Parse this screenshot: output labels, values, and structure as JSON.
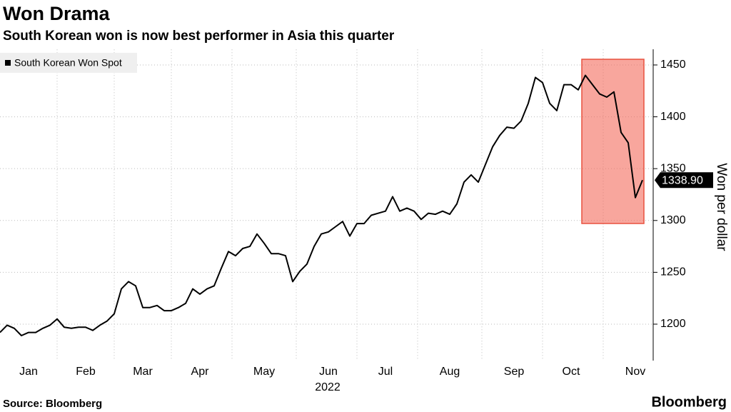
{
  "chart_data": {
    "type": "line",
    "title": "Won Drama",
    "subtitle": "South Korean won is now best performer in Asia this quarter",
    "year": "2022",
    "y_axis_label": "Won per dollar",
    "source": "Source: Bloomberg",
    "brand": "Bloomberg",
    "categories": [
      null,
      null,
      null,
      null,
      "Jan",
      null,
      null,
      null,
      null,
      null,
      null,
      null,
      "Feb",
      null,
      null,
      null,
      null,
      null,
      null,
      null,
      "Mar",
      null,
      null,
      null,
      null,
      null,
      null,
      null,
      "Apr",
      null,
      null,
      null,
      null,
      null,
      null,
      null,
      null,
      "May",
      null,
      null,
      null,
      null,
      null,
      null,
      null,
      null,
      "Jun",
      null,
      null,
      null,
      null,
      null,
      null,
      null,
      "Jul",
      null,
      null,
      null,
      null,
      null,
      null,
      null,
      null,
      "Aug",
      null,
      null,
      null,
      null,
      null,
      null,
      null,
      null,
      "Sep",
      null,
      null,
      null,
      null,
      null,
      null,
      null,
      "Oct",
      null,
      null,
      null,
      null,
      null,
      null,
      null,
      null,
      "Nov",
      null
    ],
    "series": [
      {
        "name": "South Korean Won Spot",
        "color": "#000000",
        "values": [
          1192,
          1199,
          1196,
          1189,
          1192,
          1192,
          1196,
          1199,
          1205,
          1197,
          1196,
          1197,
          1197,
          1194,
          1199,
          1203,
          1210,
          1234,
          1241,
          1237,
          1216,
          1216,
          1218,
          1213,
          1213,
          1216,
          1220,
          1234,
          1229,
          1234,
          1237,
          1254,
          1270,
          1266,
          1273,
          1275,
          1287,
          1278,
          1268,
          1268,
          1266,
          1241,
          1251,
          1258,
          1275,
          1287,
          1289,
          1294,
          1299,
          1285,
          1297,
          1297,
          1305,
          1307,
          1309,
          1323,
          1309,
          1312,
          1309,
          1301,
          1307,
          1306,
          1309,
          1306,
          1316,
          1337,
          1344,
          1337,
          1354,
          1371,
          1382,
          1390,
          1389,
          1396,
          1413,
          1438,
          1433,
          1413,
          1406,
          1431,
          1431,
          1426,
          1440,
          1431,
          1422,
          1419,
          1424,
          1385,
          1375,
          1322,
          1338.9
        ],
        "value_labels": [
          null,
          null,
          null,
          null,
          null,
          null,
          null,
          null,
          null,
          null,
          null,
          null,
          null,
          null,
          null,
          null,
          null,
          null,
          null,
          null,
          null,
          null,
          null,
          null,
          null,
          null,
          null,
          null,
          null,
          null,
          null,
          null,
          null,
          null,
          null,
          null,
          null,
          null,
          null,
          null,
          null,
          null,
          null,
          null,
          null,
          null,
          null,
          null,
          null,
          null,
          null,
          null,
          null,
          null,
          null,
          null,
          null,
          null,
          null,
          null,
          null,
          null,
          null,
          null,
          null,
          null,
          null,
          null,
          null,
          null,
          null,
          null,
          null,
          null,
          null,
          null,
          null,
          null,
          null,
          null,
          null,
          null,
          null,
          null,
          null,
          null,
          null,
          null,
          null,
          null,
          "1338.90"
        ]
      }
    ],
    "ylim": [
      1165,
      1465
    ],
    "yticks": [
      1200,
      1250,
      1300,
      1350,
      1400,
      1450
    ],
    "grid": true,
    "legend": "top-left"
  }
}
